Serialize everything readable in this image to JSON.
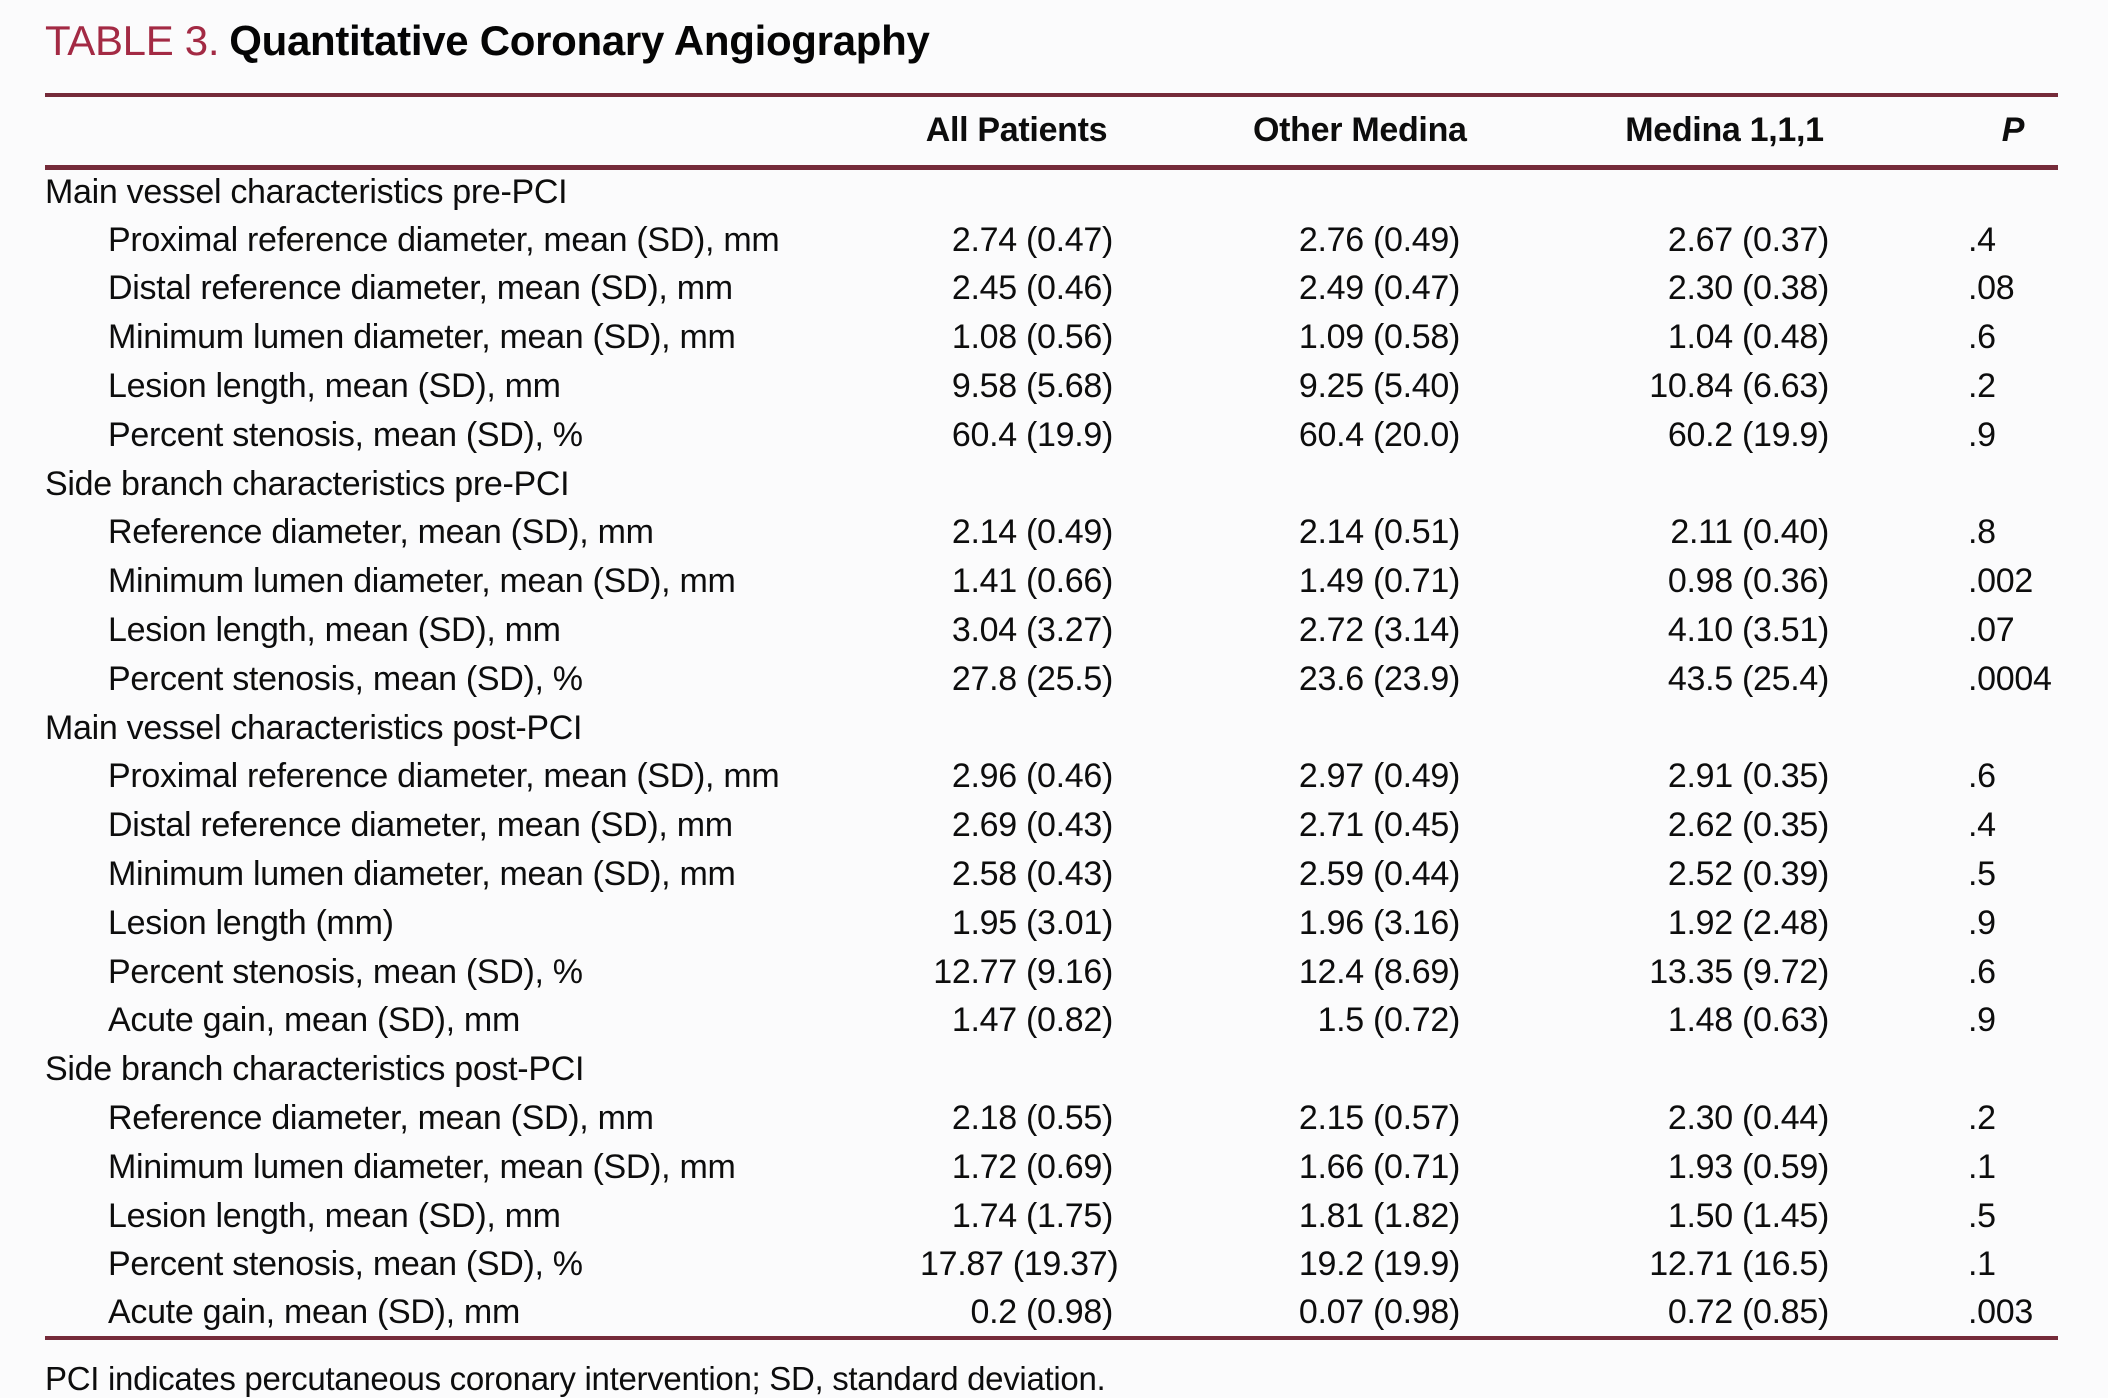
{
  "title": {
    "label": "TABLE 3.",
    "text": "Quantitative Coronary Angiography"
  },
  "columns": [
    "All Patients",
    "Other Medina",
    "Medina 1,1,1",
    "P"
  ],
  "sections": [
    {
      "header": "Main vessel characteristics pre-PCI",
      "rows": [
        {
          "label": "Proximal reference diameter, mean (SD), mm",
          "values": [
            "2.74 (0.47)",
            "2.76 (0.49)",
            "2.67 (0.37)",
            ".4"
          ]
        },
        {
          "label": "Distal reference diameter, mean (SD), mm",
          "values": [
            "2.45 (0.46)",
            "2.49 (0.47)",
            "2.30 (0.38)",
            ".08"
          ]
        },
        {
          "label": "Minimum lumen diameter, mean (SD), mm",
          "values": [
            "1.08 (0.56)",
            "1.09 (0.58)",
            "1.04 (0.48)",
            ".6"
          ]
        },
        {
          "label": "Lesion length, mean (SD), mm",
          "values": [
            "9.58 (5.68)",
            "9.25 (5.40)",
            "10.84 (6.63)",
            ".2"
          ]
        },
        {
          "label": "Percent stenosis, mean (SD), %",
          "values": [
            "60.4 (19.9)",
            "60.4 (20.0)",
            "60.2 (19.9)",
            ".9"
          ]
        }
      ]
    },
    {
      "header": "Side branch characteristics pre-PCI",
      "rows": [
        {
          "label": "Reference diameter, mean (SD), mm",
          "values": [
            "2.14 (0.49)",
            "2.14 (0.51)",
            "2.11 (0.40)",
            ".8"
          ]
        },
        {
          "label": "Minimum lumen diameter, mean (SD), mm",
          "values": [
            "1.41 (0.66)",
            "1.49 (0.71)",
            "0.98 (0.36)",
            ".002"
          ]
        },
        {
          "label": "Lesion length, mean (SD), mm",
          "values": [
            "3.04 (3.27)",
            "2.72 (3.14)",
            "4.10 (3.51)",
            ".07"
          ]
        },
        {
          "label": "Percent stenosis, mean (SD), %",
          "values": [
            "27.8 (25.5)",
            "23.6 (23.9)",
            "43.5 (25.4)",
            ".0004"
          ]
        }
      ]
    },
    {
      "header": "Main vessel characteristics post-PCI",
      "rows": [
        {
          "label": "Proximal reference diameter, mean (SD), mm",
          "values": [
            "2.96 (0.46)",
            "2.97 (0.49)",
            "2.91 (0.35)",
            ".6"
          ]
        },
        {
          "label": "Distal reference diameter, mean (SD), mm",
          "values": [
            "2.69 (0.43)",
            "2.71 (0.45)",
            "2.62 (0.35)",
            ".4"
          ]
        },
        {
          "label": "Minimum lumen diameter, mean (SD), mm",
          "values": [
            "2.58 (0.43)",
            "2.59 (0.44)",
            "2.52 (0.39)",
            ".5"
          ]
        },
        {
          "label": "Lesion length (mm)",
          "values": [
            "1.95 (3.01)",
            "1.96 (3.16)",
            "1.92 (2.48)",
            ".9"
          ]
        },
        {
          "label": "Percent stenosis, mean (SD), %",
          "values": [
            "12.77 (9.16)",
            "12.4 (8.69)",
            "13.35 (9.72)",
            ".6"
          ]
        },
        {
          "label": "Acute gain, mean (SD), mm",
          "values": [
            "1.47 (0.82)",
            "1.5 (0.72)",
            "1.48 (0.63)",
            ".9"
          ]
        }
      ]
    },
    {
      "header": "Side branch characteristics post-PCI",
      "rows": [
        {
          "label": "Reference diameter, mean (SD), mm",
          "values": [
            "2.18 (0.55)",
            "2.15 (0.57)",
            "2.30 (0.44)",
            ".2"
          ]
        },
        {
          "label": "Minimum lumen diameter, mean (SD), mm",
          "values": [
            "1.72 (0.69)",
            "1.66 (0.71)",
            "1.93 (0.59)",
            ".1"
          ]
        },
        {
          "label": "Lesion length, mean (SD), mm",
          "values": [
            "1.74 (1.75)",
            "1.81 (1.82)",
            "1.50 (1.45)",
            ".5"
          ]
        },
        {
          "label": "Percent stenosis, mean (SD), %",
          "values": [
            "17.87 (19.37)",
            "19.2 (19.9)",
            "12.71 (16.5)",
            ".1"
          ]
        },
        {
          "label": "Acute gain, mean (SD), mm",
          "values": [
            "0.2 (0.98)",
            "0.07 (0.98)",
            "0.72 (0.85)",
            ".003"
          ]
        }
      ]
    }
  ],
  "footnote": "PCI indicates percutaneous coronary intervention; SD, standard deviation.",
  "colors": {
    "accent_title": "#a32a44",
    "rule": "#752b3a",
    "text": "#0d0d0d",
    "background": "#fbfbfc"
  }
}
